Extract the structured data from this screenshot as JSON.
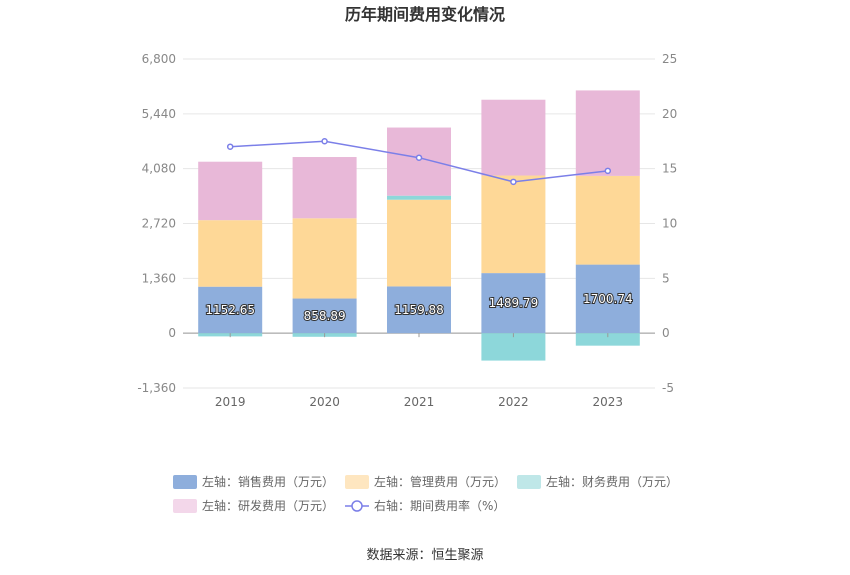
{
  "chart_data": {
    "type": "bar",
    "title": "历年期间费用变化情况",
    "categories": [
      "2019",
      "2020",
      "2021",
      "2022",
      "2023"
    ],
    "left_axis": {
      "ticks": [
        "6,800",
        "5,440",
        "4,080",
        "2,720",
        "1,360",
        "0",
        "-1,360"
      ],
      "min": -1360,
      "max": 6800
    },
    "right_axis": {
      "ticks": [
        "25",
        "20",
        "15",
        "10",
        "5",
        "0",
        "-5"
      ],
      "min": -5,
      "max": 25
    },
    "stacked": true,
    "series": [
      {
        "name": "左轴：销售费用（万元）",
        "axis": "left",
        "color": "#8eaedc",
        "values": [
          1152.65,
          858.89,
          1159.88,
          1489.79,
          1700.74
        ],
        "labels": [
          "1152.65",
          "858.89",
          "1159.88",
          "1489.79",
          "1700.74"
        ]
      },
      {
        "name": "左轴：管理费用（万元）",
        "axis": "left",
        "color": "#fed897",
        "values": [
          1650,
          1990,
          2150,
          2420,
          2200
        ]
      },
      {
        "name": "左轴：财务费用（万元）",
        "axis": "left",
        "color": "#8dd7da",
        "values": [
          -80,
          -90,
          100,
          -680,
          -310
        ]
      },
      {
        "name": "左轴：研发费用（万元）",
        "axis": "left",
        "color": "#e8b8d8",
        "values": [
          1450,
          1520,
          1690,
          1880,
          2120
        ]
      },
      {
        "name": "右轴：期间费用率（%）",
        "axis": "right",
        "type": "line",
        "color": "#7b7fe8",
        "values": [
          17.0,
          17.5,
          16.0,
          13.8,
          14.8
        ]
      }
    ],
    "legend_position": "bottom",
    "grid": true
  },
  "source": "数据来源：恒生聚源"
}
